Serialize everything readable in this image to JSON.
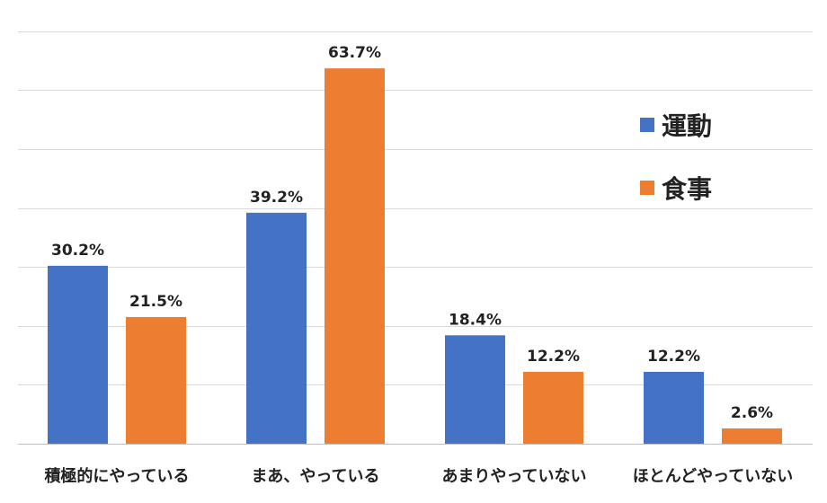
{
  "chart_data": {
    "type": "bar",
    "title": "",
    "xlabel": "",
    "ylabel": "",
    "categories": [
      "積極的にやっている",
      "まあ、やっている",
      "あまりやっていない",
      "ほとんどやっていない"
    ],
    "series": [
      {
        "name": "運動",
        "color": "#4472C4",
        "values": [
          30.2,
          39.2,
          18.4,
          12.2
        ],
        "labels": [
          "30.2%",
          "39.2%",
          "18.4%",
          "12.2%"
        ]
      },
      {
        "name": "食事",
        "color": "#ED7D31",
        "values": [
          21.5,
          63.7,
          12.2,
          2.6
        ],
        "labels": [
          "21.5%",
          "63.7%",
          "12.2%",
          "2.6%"
        ]
      }
    ],
    "ylim": [
      0,
      70
    ],
    "grid": true,
    "legend_position": "top-right"
  }
}
